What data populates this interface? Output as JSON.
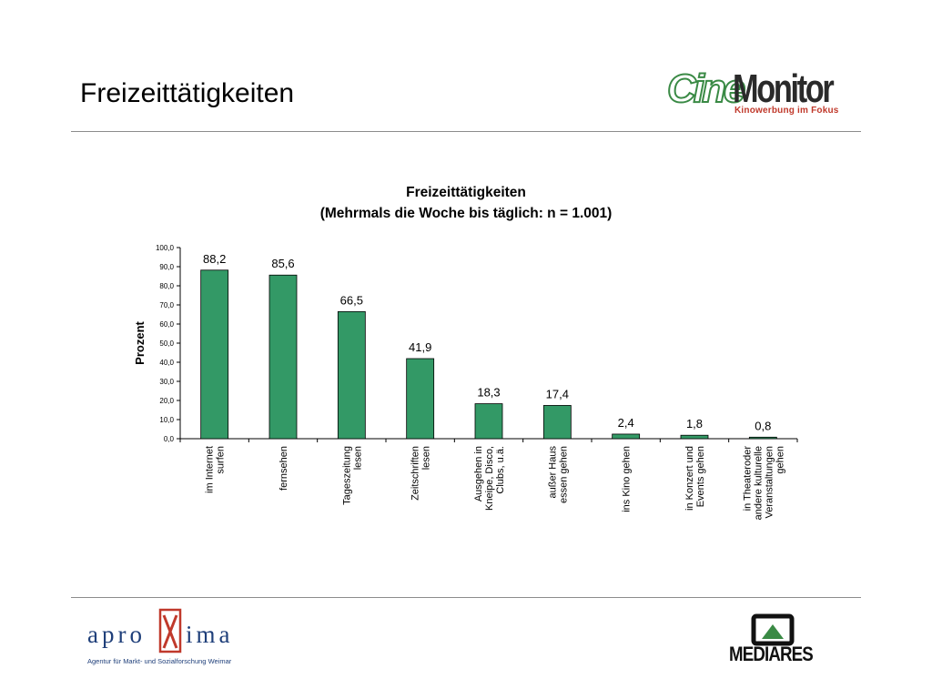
{
  "slide": {
    "title": "Freizeittätigkeiten"
  },
  "logos": {
    "cinemonitor": {
      "part1": "Cine",
      "part2": "Monitor",
      "tagline": "Kinowerbung im Fokus"
    },
    "aproxima": {
      "pre": "apro",
      "post": "ima",
      "subtitle": "Agentur für Markt- und Sozialforschung Weimar"
    },
    "mediares": {
      "name": "MEDIARES"
    }
  },
  "colors": {
    "bar": "#339966",
    "accent_green": "#3a8a45",
    "accent_red": "#c0392b",
    "aproxima_blue": "#1f3f7a"
  },
  "chart_data": {
    "type": "bar",
    "title_line1": "Freizeittätigkeiten",
    "title_line2": "(Mehrmals die Woche bis täglich: n = 1.001)",
    "ylabel": "Prozent",
    "xlabel": "",
    "ylim": [
      0,
      100
    ],
    "yticks": [
      "0,0",
      "10,0",
      "20,0",
      "30,0",
      "40,0",
      "50,0",
      "60,0",
      "70,0",
      "80,0",
      "90,0",
      "100,0"
    ],
    "categories": [
      [
        "im Internet",
        "surfen"
      ],
      [
        "fernsehen"
      ],
      [
        "Tageszeitung",
        "lesen"
      ],
      [
        "Zeitschriften",
        "lesen"
      ],
      [
        "Ausgehen in",
        "Kneipe, Disco,",
        "Clubs, u.ä."
      ],
      [
        "außer Haus",
        "essen gehen"
      ],
      [
        "ins Kino gehen"
      ],
      [
        "in Konzert und",
        "Events gehen"
      ],
      [
        "in Theateroder",
        "andere kulturelle",
        "Veranstaltungen",
        "gehen"
      ]
    ],
    "values": [
      88.2,
      85.6,
      66.5,
      41.9,
      18.3,
      17.4,
      2.4,
      1.8,
      0.8
    ],
    "value_labels": [
      "88,2",
      "85,6",
      "66,5",
      "41,9",
      "18,3",
      "17,4",
      "2,4",
      "1,8",
      "0,8"
    ],
    "grid": false,
    "legend": "none"
  }
}
